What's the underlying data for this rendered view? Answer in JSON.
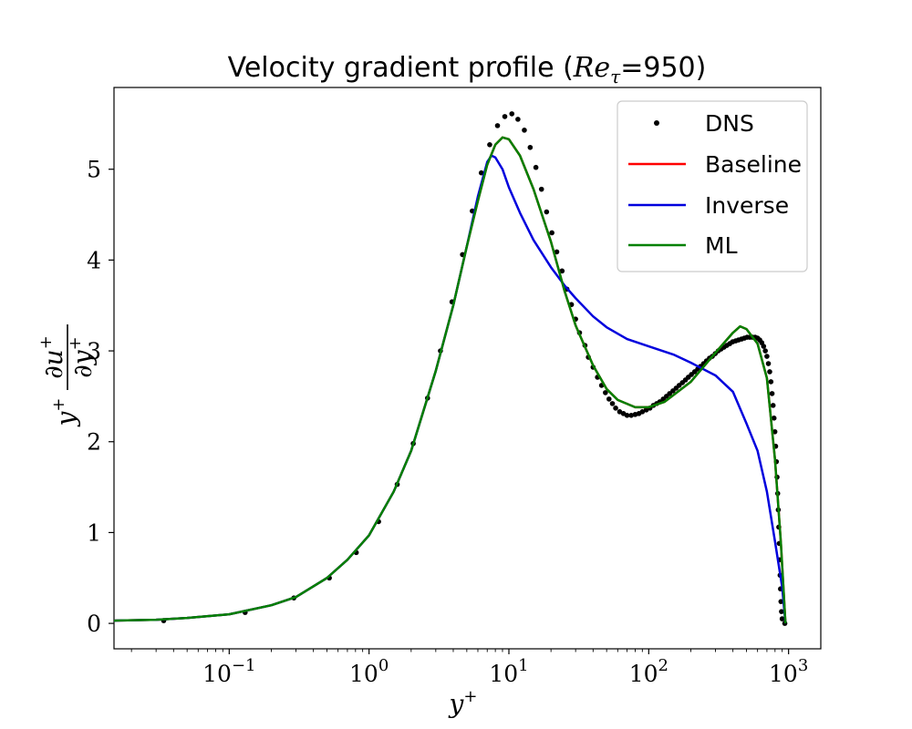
{
  "chart_data": {
    "type": "line",
    "title_prefix": "Velocity gradient profile (",
    "title_var": "Re",
    "title_sub": "τ",
    "title_suffix": "=950)",
    "xlabel_base": "y",
    "xlabel_sup": "+",
    "ylabel": "y⁺ ∂u⁺/∂y⁺",
    "xscale": "log",
    "xlim": [
      0.015,
      1700
    ],
    "ylim": [
      -0.28,
      5.9
    ],
    "x_ticks": [
      {
        "value": 0.1,
        "base": "10",
        "exp": "−1"
      },
      {
        "value": 1,
        "base": "10",
        "exp": "0"
      },
      {
        "value": 10,
        "base": "10",
        "exp": "1"
      },
      {
        "value": 100,
        "base": "10",
        "exp": "2"
      },
      {
        "value": 1000,
        "base": "10",
        "exp": "3"
      }
    ],
    "y_ticks": [
      {
        "value": 0,
        "label": "0"
      },
      {
        "value": 1,
        "label": "1"
      },
      {
        "value": 2,
        "label": "2"
      },
      {
        "value": 3,
        "label": "3"
      },
      {
        "value": 4,
        "label": "4"
      },
      {
        "value": 5,
        "label": "5"
      }
    ],
    "legend": "top-right",
    "grid": false,
    "series": [
      {
        "name": "DNS",
        "style": "markers",
        "color": "#000000",
        "points": [
          [
            0.034,
            0.03
          ],
          [
            0.13,
            0.12
          ],
          [
            0.29,
            0.28
          ],
          [
            0.52,
            0.5
          ],
          [
            0.81,
            0.78
          ],
          [
            1.17,
            1.12
          ],
          [
            1.59,
            1.53
          ],
          [
            2.07,
            1.98
          ],
          [
            2.62,
            2.48
          ],
          [
            3.24,
            3.0
          ],
          [
            3.92,
            3.54
          ],
          [
            4.66,
            4.06
          ],
          [
            5.47,
            4.54
          ],
          [
            6.35,
            4.96
          ],
          [
            7.29,
            5.27
          ],
          [
            8.29,
            5.48
          ],
          [
            9.35,
            5.58
          ],
          [
            10.5,
            5.61
          ],
          [
            11.6,
            5.55
          ],
          [
            12.9,
            5.43
          ],
          [
            14.2,
            5.24
          ],
          [
            15.6,
            5.02
          ],
          [
            17.1,
            4.78
          ],
          [
            18.6,
            4.53
          ],
          [
            20.3,
            4.3
          ],
          [
            22,
            4.09
          ],
          [
            24,
            3.88
          ],
          [
            26,
            3.68
          ],
          [
            28,
            3.51
          ],
          [
            30,
            3.35
          ],
          [
            32,
            3.2
          ],
          [
            35,
            3.06
          ],
          [
            37,
            2.93
          ],
          [
            40,
            2.82
          ],
          [
            43,
            2.71
          ],
          [
            46,
            2.62
          ],
          [
            49,
            2.54
          ],
          [
            52,
            2.47
          ],
          [
            55,
            2.42
          ],
          [
            58,
            2.37
          ],
          [
            62,
            2.33
          ],
          [
            66,
            2.31
          ],
          [
            70,
            2.29
          ],
          [
            75,
            2.29
          ],
          [
            80,
            2.3
          ],
          [
            85,
            2.31
          ],
          [
            90,
            2.33
          ],
          [
            96,
            2.35
          ],
          [
            102,
            2.37
          ],
          [
            108,
            2.4
          ],
          [
            114,
            2.42
          ],
          [
            120,
            2.44
          ],
          [
            127,
            2.47
          ],
          [
            134,
            2.5
          ],
          [
            141,
            2.53
          ],
          [
            149,
            2.56
          ],
          [
            157,
            2.59
          ],
          [
            165,
            2.62
          ],
          [
            174,
            2.65
          ],
          [
            183,
            2.68
          ],
          [
            192,
            2.71
          ],
          [
            202,
            2.74
          ],
          [
            213,
            2.77
          ],
          [
            224,
            2.8
          ],
          [
            235,
            2.83
          ],
          [
            247,
            2.86
          ],
          [
            259,
            2.89
          ],
          [
            272,
            2.92
          ],
          [
            285,
            2.94
          ],
          [
            299,
            2.97
          ],
          [
            314,
            3.0
          ],
          [
            329,
            3.02
          ],
          [
            345,
            3.04
          ],
          [
            362,
            3.06
          ],
          [
            380,
            3.08
          ],
          [
            398,
            3.1
          ],
          [
            418,
            3.11
          ],
          [
            438,
            3.12
          ],
          [
            460,
            3.13
          ],
          [
            482,
            3.14
          ],
          [
            505,
            3.15
          ],
          [
            529,
            3.15
          ],
          [
            553,
            3.15
          ],
          [
            577,
            3.15
          ],
          [
            600,
            3.14
          ],
          [
            622,
            3.12
          ],
          [
            643,
            3.09
          ],
          [
            663,
            3.05
          ],
          [
            682,
            3.0
          ],
          [
            700,
            2.94
          ],
          [
            717,
            2.86
          ],
          [
            733,
            2.77
          ],
          [
            748,
            2.66
          ],
          [
            762,
            2.53
          ],
          [
            775,
            2.4
          ],
          [
            787,
            2.26
          ],
          [
            798,
            2.11
          ],
          [
            808,
            1.95
          ],
          [
            818,
            1.78
          ],
          [
            827,
            1.61
          ],
          [
            836,
            1.43
          ],
          [
            844,
            1.25
          ],
          [
            851,
            1.06
          ],
          [
            858,
            0.88
          ],
          [
            864,
            0.7
          ],
          [
            870,
            0.53
          ],
          [
            876,
            0.38
          ],
          [
            882,
            0.24
          ],
          [
            890,
            0.13
          ],
          [
            900,
            0.05
          ],
          [
            940,
            0.0
          ]
        ]
      },
      {
        "name": "Baseline",
        "style": "line",
        "color": "#ff0000",
        "points": [
          [
            0.015,
            0.03
          ],
          [
            0.03,
            0.04
          ],
          [
            0.05,
            0.06
          ],
          [
            0.1,
            0.1
          ],
          [
            0.2,
            0.2
          ],
          [
            0.3,
            0.29
          ],
          [
            0.5,
            0.5
          ],
          [
            0.7,
            0.7
          ],
          [
            1,
            0.97
          ],
          [
            1.5,
            1.45
          ],
          [
            2,
            1.9
          ],
          [
            3,
            2.78
          ],
          [
            4,
            3.5
          ],
          [
            5,
            4.15
          ],
          [
            6,
            4.65
          ],
          [
            7,
            5.05
          ],
          [
            8,
            5.27
          ],
          [
            9,
            5.35
          ],
          [
            10,
            5.33
          ],
          [
            12,
            5.15
          ],
          [
            15,
            4.78
          ],
          [
            20,
            4.2
          ],
          [
            25,
            3.66
          ],
          [
            30,
            3.28
          ],
          [
            40,
            2.84
          ],
          [
            50,
            2.58
          ],
          [
            60,
            2.46
          ],
          [
            80,
            2.38
          ],
          [
            100,
            2.38
          ],
          [
            130,
            2.44
          ],
          [
            200,
            2.66
          ],
          [
            300,
            2.98
          ],
          [
            400,
            3.2
          ],
          [
            450,
            3.27
          ],
          [
            500,
            3.24
          ],
          [
            600,
            3.08
          ],
          [
            700,
            2.7
          ],
          [
            800,
            1.8
          ],
          [
            880,
            0.9
          ],
          [
            950,
            0.0
          ]
        ]
      },
      {
        "name": "Inverse",
        "style": "line",
        "color": "#0000dd",
        "points": [
          [
            0.015,
            0.03
          ],
          [
            0.03,
            0.04
          ],
          [
            0.05,
            0.06
          ],
          [
            0.1,
            0.1
          ],
          [
            0.2,
            0.2
          ],
          [
            0.3,
            0.29
          ],
          [
            0.5,
            0.5
          ],
          [
            0.7,
            0.7
          ],
          [
            1,
            0.97
          ],
          [
            1.5,
            1.45
          ],
          [
            2,
            1.9
          ],
          [
            3,
            2.78
          ],
          [
            4,
            3.5
          ],
          [
            5,
            4.15
          ],
          [
            6,
            4.7
          ],
          [
            7,
            5.08
          ],
          [
            7.5,
            5.15
          ],
          [
            8,
            5.13
          ],
          [
            9,
            5.0
          ],
          [
            10,
            4.8
          ],
          [
            12,
            4.52
          ],
          [
            15,
            4.22
          ],
          [
            20,
            3.92
          ],
          [
            25,
            3.72
          ],
          [
            30,
            3.58
          ],
          [
            40,
            3.38
          ],
          [
            50,
            3.26
          ],
          [
            70,
            3.13
          ],
          [
            100,
            3.05
          ],
          [
            150,
            2.96
          ],
          [
            200,
            2.87
          ],
          [
            300,
            2.73
          ],
          [
            400,
            2.55
          ],
          [
            500,
            2.2
          ],
          [
            600,
            1.9
          ],
          [
            700,
            1.45
          ],
          [
            800,
            0.9
          ],
          [
            900,
            0.4
          ],
          [
            950,
            0.0
          ]
        ]
      },
      {
        "name": "ML",
        "style": "line",
        "color": "#008000",
        "points": [
          [
            0.015,
            0.03
          ],
          [
            0.03,
            0.04
          ],
          [
            0.05,
            0.06
          ],
          [
            0.1,
            0.1
          ],
          [
            0.2,
            0.2
          ],
          [
            0.3,
            0.29
          ],
          [
            0.5,
            0.5
          ],
          [
            0.7,
            0.7
          ],
          [
            1,
            0.97
          ],
          [
            1.5,
            1.45
          ],
          [
            2,
            1.9
          ],
          [
            3,
            2.78
          ],
          [
            4,
            3.5
          ],
          [
            5,
            4.15
          ],
          [
            6,
            4.65
          ],
          [
            7,
            5.05
          ],
          [
            8,
            5.27
          ],
          [
            9,
            5.35
          ],
          [
            10,
            5.33
          ],
          [
            12,
            5.15
          ],
          [
            15,
            4.78
          ],
          [
            20,
            4.2
          ],
          [
            25,
            3.66
          ],
          [
            30,
            3.28
          ],
          [
            40,
            2.84
          ],
          [
            50,
            2.58
          ],
          [
            60,
            2.46
          ],
          [
            80,
            2.38
          ],
          [
            100,
            2.38
          ],
          [
            130,
            2.44
          ],
          [
            200,
            2.66
          ],
          [
            300,
            2.98
          ],
          [
            400,
            3.2
          ],
          [
            450,
            3.27
          ],
          [
            500,
            3.24
          ],
          [
            600,
            3.08
          ],
          [
            700,
            2.7
          ],
          [
            800,
            1.8
          ],
          [
            880,
            0.9
          ],
          [
            950,
            0.0
          ]
        ]
      }
    ]
  }
}
